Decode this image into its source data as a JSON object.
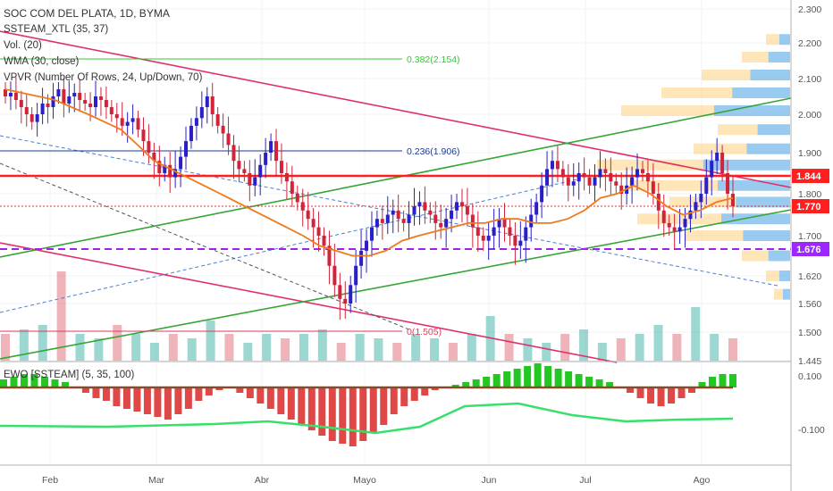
{
  "legend": {
    "title": "SOC COM DEL PLATA, 1D, BYMA",
    "indicator1": "SSTEAM_XTL (35, 37)",
    "indicator2": "Vol. (20)",
    "indicator3": "WMA (30, close)",
    "indicator4": "VPVR (Number Of Rows, 24, Up/Down, 70)"
  },
  "ewo_legend": "EWO [SSTEAM] (5, 35, 100)",
  "fib_labels": [
    "0.382(2.154)",
    "0.236(1.906)",
    "0(1.505)"
  ],
  "price_tags": {
    "high": "1.844",
    "mid": "1.770",
    "low": "1.676"
  },
  "colors": {
    "up": "#2a1fc9",
    "down": "#d0243a",
    "wma": "#f07a1a",
    "trend_red": "#e0306a",
    "trend_green": "#35a535",
    "fib_green": "#35c935",
    "support_purple": "#a020f0",
    "tag_red": "#ff1f1f",
    "tag_purple": "#9c27ff",
    "ewo_up": "#22c722",
    "ewo_down": "#e04848",
    "ewo_brown": "#8b4a2b"
  },
  "chart_data": {
    "type": "candlestick",
    "title": "SOC COM DEL PLATA, 1D, BYMA",
    "y_axis_ticks": [
      "2.300",
      "2.200",
      "2.100",
      "2.000",
      "1.900",
      "1.800",
      "1.700",
      "1.620",
      "1.560",
      "1.500",
      "1.445"
    ],
    "ewo_axis_ticks": [
      "0.100",
      "-0.100"
    ],
    "x_axis_ticks": [
      "Feb",
      "Mar",
      "Abr",
      "Mayo",
      "Jun",
      "Jul",
      "Ago"
    ],
    "ylim": [
      1.445,
      2.3
    ],
    "series": [
      {
        "name": "SOC COM DEL PLATA",
        "close": [
          2.05,
          2.06,
          2.04,
          2.02,
          2.0,
          1.98,
          2.0,
          2.03,
          2.02,
          2.05,
          2.07,
          2.03,
          2.05,
          2.06,
          2.04,
          2.03,
          2.02,
          2.05,
          2.04,
          2.02,
          2.0,
          1.99,
          1.97,
          1.98,
          1.99,
          1.96,
          1.93,
          1.9,
          1.88,
          1.85,
          1.87,
          1.84,
          1.86,
          1.89,
          1.93,
          1.97,
          1.99,
          2.02,
          2.05,
          2.0,
          1.97,
          1.95,
          1.92,
          1.88,
          1.86,
          1.85,
          1.82,
          1.84,
          1.87,
          1.9,
          1.93,
          1.88,
          1.85,
          1.83,
          1.8,
          1.78,
          1.76,
          1.74,
          1.72,
          1.7,
          1.68,
          1.64,
          1.6,
          1.57,
          1.56,
          1.6,
          1.64,
          1.67,
          1.69,
          1.72,
          1.74,
          1.73,
          1.75,
          1.76,
          1.74,
          1.73,
          1.75,
          1.77,
          1.78,
          1.76,
          1.75,
          1.73,
          1.72,
          1.74,
          1.76,
          1.78,
          1.77,
          1.75,
          1.72,
          1.7,
          1.69,
          1.7,
          1.72,
          1.74,
          1.72,
          1.7,
          1.68,
          1.69,
          1.72,
          1.75,
          1.78,
          1.82,
          1.86,
          1.88,
          1.86,
          1.84,
          1.82,
          1.83,
          1.85,
          1.84,
          1.82,
          1.84,
          1.86,
          1.85,
          1.83,
          1.82,
          1.8,
          1.82,
          1.84,
          1.86,
          1.85,
          1.83,
          1.8,
          1.76,
          1.73,
          1.72,
          1.71,
          1.72,
          1.74,
          1.76,
          1.78,
          1.8,
          1.84,
          1.88,
          1.9,
          1.85,
          1.8,
          1.77
        ]
      },
      {
        "name": "WMA (30, close)",
        "values": [
          2.07,
          2.06,
          2.05,
          2.04,
          2.02,
          2.0,
          1.98,
          1.96,
          1.92,
          1.88,
          1.86,
          1.84,
          1.82,
          1.8,
          1.78,
          1.76,
          1.74,
          1.72,
          1.7,
          1.68,
          1.67,
          1.66,
          1.66,
          1.67,
          1.69,
          1.7,
          1.71,
          1.72,
          1.73,
          1.73,
          1.74,
          1.74,
          1.73,
          1.73,
          1.74,
          1.76,
          1.79,
          1.8,
          1.82,
          1.8,
          1.77,
          1.75,
          1.76,
          1.78,
          1.79
        ]
      }
    ],
    "volume": [
      0.3,
      0.35,
      0.4,
      1.0,
      0.3,
      0.25,
      0.4,
      0.3,
      0.2,
      0.3,
      0.25,
      0.45,
      0.3,
      0.2,
      0.3,
      0.25,
      0.3,
      0.35,
      0.2,
      0.3,
      0.25,
      0.2,
      0.3,
      0.25,
      0.2,
      0.3,
      0.5,
      0.3,
      0.25,
      0.2,
      0.3,
      0.35,
      0.2,
      0.25,
      0.3,
      0.4,
      0.3,
      0.6,
      0.3,
      0.25
    ],
    "ewo": [
      0.03,
      0.04,
      0.05,
      0.05,
      0.04,
      0.03,
      0.02,
      0.0,
      -0.02,
      -0.04,
      -0.05,
      -0.07,
      -0.08,
      -0.09,
      -0.1,
      -0.11,
      -0.12,
      -0.1,
      -0.08,
      -0.05,
      -0.03,
      -0.01,
      0.0,
      -0.02,
      -0.04,
      -0.06,
      -0.08,
      -0.1,
      -0.12,
      -0.14,
      -0.16,
      -0.18,
      -0.2,
      -0.21,
      -0.22,
      -0.2,
      -0.17,
      -0.14,
      -0.1,
      -0.07,
      -0.05,
      -0.03,
      -0.01,
      0.0,
      0.01,
      0.02,
      0.03,
      0.04,
      0.05,
      0.06,
      0.07,
      0.08,
      0.09,
      0.08,
      0.07,
      0.06,
      0.05,
      0.04,
      0.03,
      0.02,
      0.0,
      -0.02,
      -0.04,
      -0.06,
      -0.07,
      -0.06,
      -0.04,
      -0.02,
      0.02,
      0.04,
      0.05,
      0.05
    ]
  }
}
